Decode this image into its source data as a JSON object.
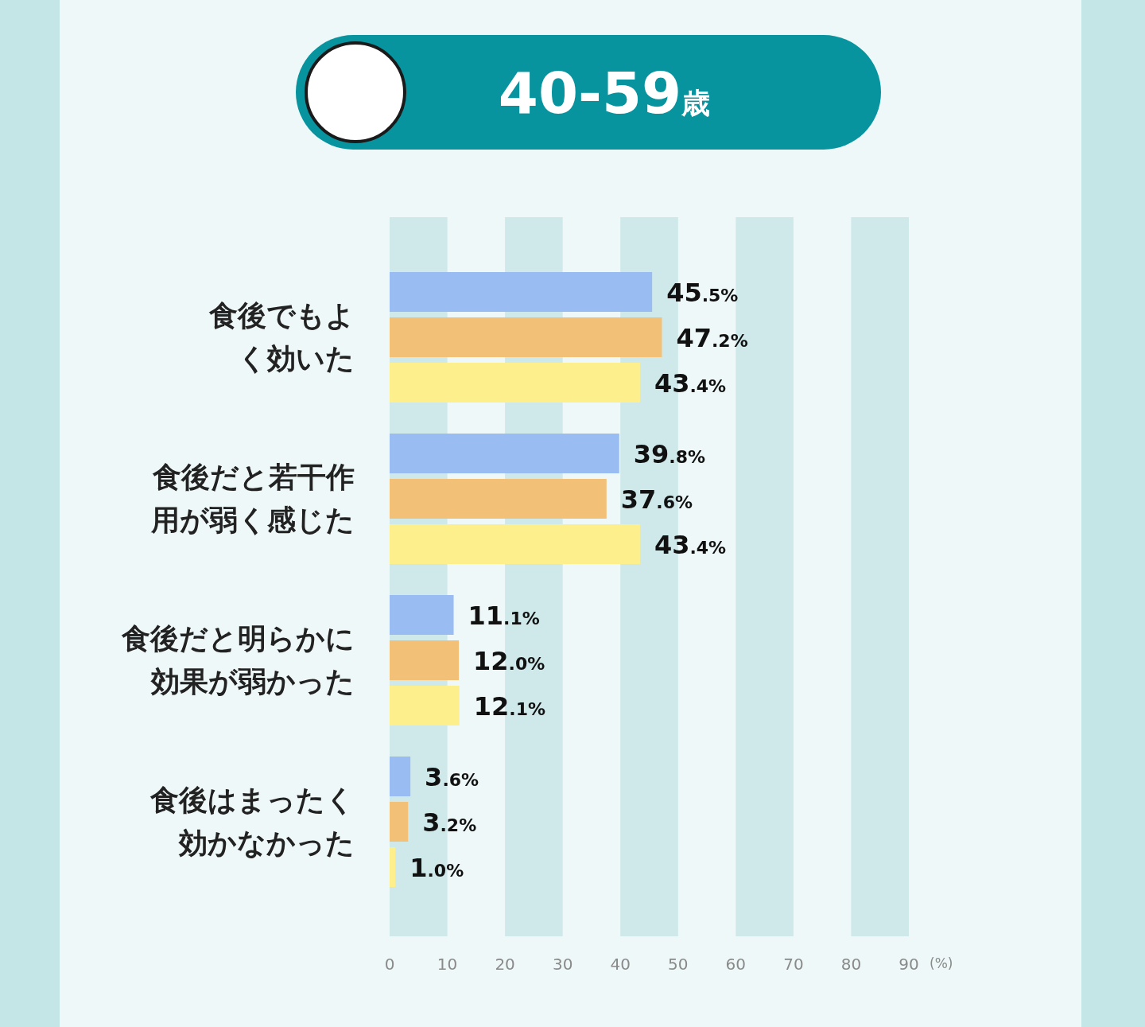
{
  "chart_data": {
    "type": "bar",
    "orientation": "horizontal",
    "title": "40-59歳",
    "xlabel": "(%)",
    "categories": [
      "食後でもよく効いた",
      "食後だと若干作用が弱く感じた",
      "食後だと明らかに効果が弱かった",
      "食後はまったく効かなかった"
    ],
    "series": [
      {
        "color": "#99bcf2",
        "values": [
          45.5,
          39.8,
          11.1,
          3.6
        ],
        "value_labels": [
          "45.5%",
          "39.8%",
          "11.1%",
          "3.6%"
        ]
      },
      {
        "color": "#f2c077",
        "values": [
          47.2,
          37.6,
          12.0,
          3.2
        ],
        "value_labels": [
          "47.2%",
          "37.6%",
          "12.0%",
          "3.2%"
        ]
      },
      {
        "color": "#fdf08c",
        "values": [
          43.4,
          43.4,
          12.1,
          1.0
        ],
        "value_labels": [
          "43.4%",
          "43.4%",
          "12.1%",
          "1.0%"
        ]
      }
    ],
    "xlim": [
      0,
      90
    ],
    "xticks": [
      0,
      10,
      20,
      30,
      40,
      50,
      60,
      70,
      80,
      90
    ],
    "bands": [
      {
        "axis": "x",
        "from": 0,
        "to": 10,
        "color": "#cfe8ea"
      },
      {
        "axis": "x",
        "from": 20,
        "to": 30,
        "color": "#cfe8ea"
      },
      {
        "axis": "x",
        "from": 40,
        "to": 50,
        "color": "#cfe8ea"
      },
      {
        "axis": "x",
        "from": 60,
        "to": 70,
        "color": "#cfe8ea"
      },
      {
        "axis": "x",
        "from": 80,
        "to": 90,
        "color": "#cfe8ea"
      }
    ],
    "grid": false
  }
}
